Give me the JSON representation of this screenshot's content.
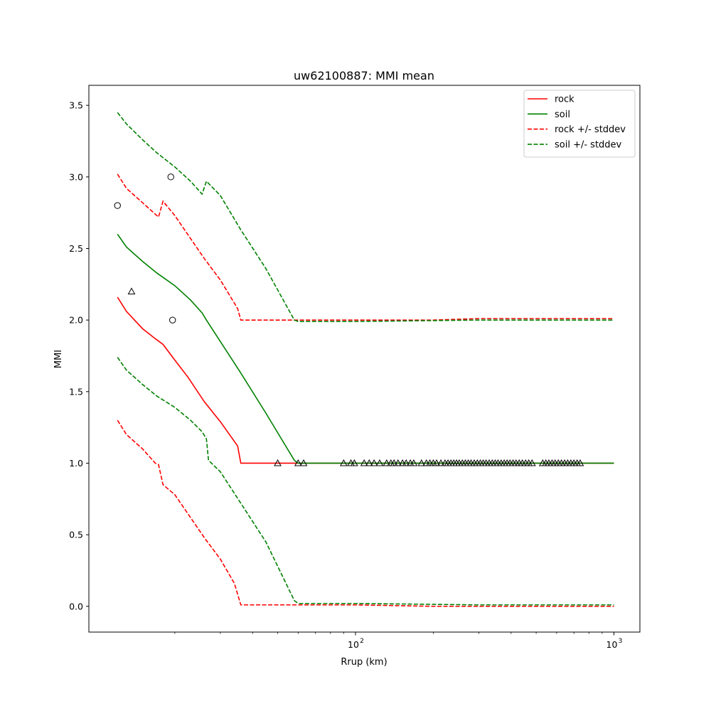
{
  "chart_data": {
    "type": "line",
    "title": "uw62100887: MMI mean",
    "xlabel": "Rrup (km)",
    "ylabel": "MMI",
    "xscale": "log",
    "xlim": [
      9.3,
      1260
    ],
    "ylim": [
      -0.18,
      3.64
    ],
    "grid": false,
    "legend_position": "top-right",
    "x_ticks_major": [
      {
        "value": 100,
        "base": "10",
        "exp": "2"
      },
      {
        "value": 1000,
        "base": "10",
        "exp": "3"
      }
    ],
    "y_ticks": [
      {
        "value": 0.0,
        "label": "0.0"
      },
      {
        "value": 0.5,
        "label": "0.5"
      },
      {
        "value": 1.0,
        "label": "1.0"
      },
      {
        "value": 1.5,
        "label": "1.5"
      },
      {
        "value": 2.0,
        "label": "2.0"
      },
      {
        "value": 2.5,
        "label": "2.5"
      },
      {
        "value": 3.0,
        "label": "3.0"
      },
      {
        "value": 3.5,
        "label": "3.5"
      }
    ],
    "series": [
      {
        "name": "rock",
        "color": "#ff0000",
        "style": "solid",
        "legend": true,
        "points": [
          [
            12,
            2.16
          ],
          [
            13,
            2.06
          ],
          [
            15,
            1.94
          ],
          [
            16.8,
            1.87
          ],
          [
            18,
            1.83
          ],
          [
            20,
            1.72
          ],
          [
            22.5,
            1.6
          ],
          [
            26,
            1.43
          ],
          [
            30,
            1.29
          ],
          [
            35,
            1.12
          ],
          [
            36,
            1.0
          ],
          [
            50,
            1.0
          ],
          [
            60,
            1.0
          ],
          [
            1000,
            1.0
          ]
        ]
      },
      {
        "name": "soil",
        "color": "#008000",
        "style": "solid",
        "legend": true,
        "points": [
          [
            12,
            2.6
          ],
          [
            13,
            2.51
          ],
          [
            15,
            2.41
          ],
          [
            17,
            2.33
          ],
          [
            20,
            2.24
          ],
          [
            23,
            2.14
          ],
          [
            25.5,
            2.05
          ],
          [
            26.5,
            2.0
          ],
          [
            30,
            1.85
          ],
          [
            36,
            1.63
          ],
          [
            45,
            1.35
          ],
          [
            58,
            1.02
          ],
          [
            60,
            1.0
          ],
          [
            1000,
            1.0
          ]
        ]
      },
      {
        "name": "rock +/- stddev",
        "color": "#ff0000",
        "style": "dashed",
        "legend": true,
        "points": [
          [
            12,
            3.02
          ],
          [
            13,
            2.92
          ],
          [
            15,
            2.82
          ],
          [
            16.8,
            2.74
          ],
          [
            17.3,
            2.72
          ],
          [
            18,
            2.83
          ],
          [
            20,
            2.73
          ],
          [
            23,
            2.57
          ],
          [
            26,
            2.43
          ],
          [
            30,
            2.28
          ],
          [
            35,
            2.08
          ],
          [
            36,
            2.0
          ],
          [
            100,
            2.0
          ],
          [
            200,
            2.0
          ],
          [
            300,
            2.01
          ],
          [
            1000,
            2.01
          ]
        ]
      },
      {
        "name": "soil +/- stddev",
        "color": "#008000",
        "style": "dashed",
        "legend": true,
        "points": [
          [
            12,
            3.45
          ],
          [
            13,
            3.37
          ],
          [
            15,
            3.26
          ],
          [
            17,
            3.17
          ],
          [
            20,
            3.07
          ],
          [
            23,
            2.97
          ],
          [
            25.5,
            2.88
          ],
          [
            26.5,
            2.97
          ],
          [
            30,
            2.87
          ],
          [
            36,
            2.63
          ],
          [
            45,
            2.36
          ],
          [
            58,
            2.0
          ],
          [
            60,
            1.99
          ],
          [
            100,
            1.99
          ],
          [
            300,
            2.0
          ],
          [
            1000,
            2.0
          ]
        ]
      },
      {
        "name": "",
        "color": "#ff0000",
        "style": "dashed",
        "legend": false,
        "points": [
          [
            12,
            1.3
          ],
          [
            13,
            1.2
          ],
          [
            15,
            1.1
          ],
          [
            16.8,
            1.0
          ],
          [
            17.3,
            0.99
          ],
          [
            18,
            0.85
          ],
          [
            20,
            0.78
          ],
          [
            23,
            0.62
          ],
          [
            26,
            0.48
          ],
          [
            30,
            0.33
          ],
          [
            34,
            0.16
          ],
          [
            36,
            0.01
          ],
          [
            100,
            0.01
          ],
          [
            200,
            0.0
          ],
          [
            1000,
            0.0
          ]
        ]
      },
      {
        "name": "",
        "color": "#008000",
        "style": "dashed",
        "legend": false,
        "points": [
          [
            12,
            1.74
          ],
          [
            13,
            1.65
          ],
          [
            15,
            1.55
          ],
          [
            17,
            1.47
          ],
          [
            20,
            1.39
          ],
          [
            23,
            1.3
          ],
          [
            25.5,
            1.22
          ],
          [
            26.5,
            1.17
          ],
          [
            27,
            1.02
          ],
          [
            30,
            0.94
          ],
          [
            36,
            0.72
          ],
          [
            45,
            0.45
          ],
          [
            58,
            0.04
          ],
          [
            60,
            0.02
          ],
          [
            100,
            0.02
          ],
          [
            300,
            0.01
          ],
          [
            1000,
            0.01
          ]
        ]
      }
    ],
    "observations": {
      "circles": [
        [
          12,
          2.8
        ],
        [
          19.3,
          3.0
        ],
        [
          19.6,
          2.0
        ]
      ],
      "triangles": [
        [
          13.6,
          2.2
        ],
        [
          50,
          1.0
        ],
        [
          60,
          1.0
        ],
        [
          63,
          1.0
        ],
        [
          90,
          1.0
        ],
        [
          96,
          1.0
        ],
        [
          99,
          1.0
        ],
        [
          108,
          1.0
        ],
        [
          113,
          1.0
        ],
        [
          118,
          1.0
        ],
        [
          124,
          1.0
        ],
        [
          132,
          1.0
        ],
        [
          137,
          1.0
        ],
        [
          141,
          1.0
        ],
        [
          146,
          1.0
        ],
        [
          152,
          1.0
        ],
        [
          157,
          1.0
        ],
        [
          163,
          1.0
        ],
        [
          168,
          1.0
        ],
        [
          180,
          1.0
        ],
        [
          188,
          1.0
        ],
        [
          194,
          1.0
        ],
        [
          200,
          1.0
        ],
        [
          206,
          1.0
        ],
        [
          214,
          1.0
        ],
        [
          222,
          1.0
        ],
        [
          228,
          1.0
        ],
        [
          234,
          1.0
        ],
        [
          240,
          1.0
        ],
        [
          246,
          1.0
        ],
        [
          252,
          1.0
        ],
        [
          259,
          1.0
        ],
        [
          266,
          1.0
        ],
        [
          273,
          1.0
        ],
        [
          280,
          1.0
        ],
        [
          288,
          1.0
        ],
        [
          296,
          1.0
        ],
        [
          304,
          1.0
        ],
        [
          312,
          1.0
        ],
        [
          320,
          1.0
        ],
        [
          329,
          1.0
        ],
        [
          338,
          1.0
        ],
        [
          347,
          1.0
        ],
        [
          356,
          1.0
        ],
        [
          366,
          1.0
        ],
        [
          376,
          1.0
        ],
        [
          386,
          1.0
        ],
        [
          396,
          1.0
        ],
        [
          407,
          1.0
        ],
        [
          418,
          1.0
        ],
        [
          430,
          1.0
        ],
        [
          442,
          1.0
        ],
        [
          455,
          1.0
        ],
        [
          468,
          1.0
        ],
        [
          482,
          1.0
        ],
        [
          530,
          1.0
        ],
        [
          545,
          1.0
        ],
        [
          560,
          1.0
        ],
        [
          576,
          1.0
        ],
        [
          592,
          1.0
        ],
        [
          609,
          1.0
        ],
        [
          626,
          1.0
        ],
        [
          644,
          1.0
        ],
        [
          662,
          1.0
        ],
        [
          681,
          1.0
        ],
        [
          700,
          1.0
        ],
        [
          720,
          1.0
        ],
        [
          740,
          1.0
        ]
      ]
    }
  }
}
